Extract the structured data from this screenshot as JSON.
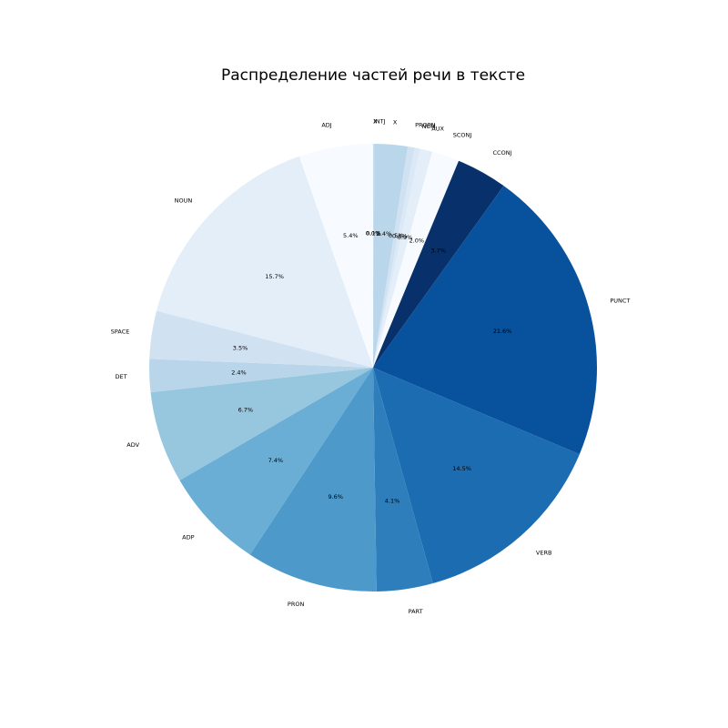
{
  "chart_data": {
    "type": "pie",
    "title": "Распределение частей речи в тексте",
    "start_angle_deg": 90,
    "direction": "clockwise",
    "slices": [
      {
        "label": "X",
        "value": 0.0,
        "pct_label": "0.0%",
        "color": "#b9d6ea"
      },
      {
        "label": "INTJ",
        "value": 0.1,
        "pct_label": "0.1%",
        "color": "#c7dcef"
      },
      {
        "label": "X",
        "value": 2.4,
        "pct_label": "2.4%",
        "color": "#b9d6ea"
      },
      {
        "label": "PROPN",
        "value": 0.5,
        "pct_label": "0.5%",
        "color": "#d0e1f2"
      },
      {
        "label": "NUM",
        "value": 0.4,
        "pct_label": "0.4%",
        "color": "#dbe9f6"
      },
      {
        "label": "AUX",
        "value": 0.9,
        "pct_label": "0.9%",
        "color": "#e3eef9"
      },
      {
        "label": "SCONJ",
        "value": 2.0,
        "pct_label": "2.0%",
        "color": "#f7fbff"
      },
      {
        "label": "CCONJ",
        "value": 3.7,
        "pct_label": "3.7%",
        "color": "#08306b"
      },
      {
        "label": "PUNCT",
        "value": 21.6,
        "pct_label": "21.6%",
        "color": "#08519c"
      },
      {
        "label": "VERB",
        "value": 14.5,
        "pct_label": "14.5%",
        "color": "#1c6cb1"
      },
      {
        "label": "PART",
        "value": 4.1,
        "pct_label": "4.1%",
        "color": "#2e7ebc"
      },
      {
        "label": "PRON",
        "value": 9.6,
        "pct_label": "9.6%",
        "color": "#4d99ca"
      },
      {
        "label": "ADP",
        "value": 7.4,
        "pct_label": "7.4%",
        "color": "#6aaed6"
      },
      {
        "label": "ADV",
        "value": 6.7,
        "pct_label": "6.7%",
        "color": "#97c6df"
      },
      {
        "label": "DET",
        "value": 2.4,
        "pct_label": "2.4%",
        "color": "#b8d5ea"
      },
      {
        "label": "SPACE",
        "value": 3.5,
        "pct_label": "3.5%",
        "color": "#d0e1f2"
      },
      {
        "label": "NOUN",
        "value": 15.7,
        "pct_label": "15.7%",
        "color": "#e3eef8"
      },
      {
        "label": "ADJ",
        "value": 5.4,
        "pct_label": "5.4%",
        "color": "#f7fbff"
      }
    ]
  }
}
